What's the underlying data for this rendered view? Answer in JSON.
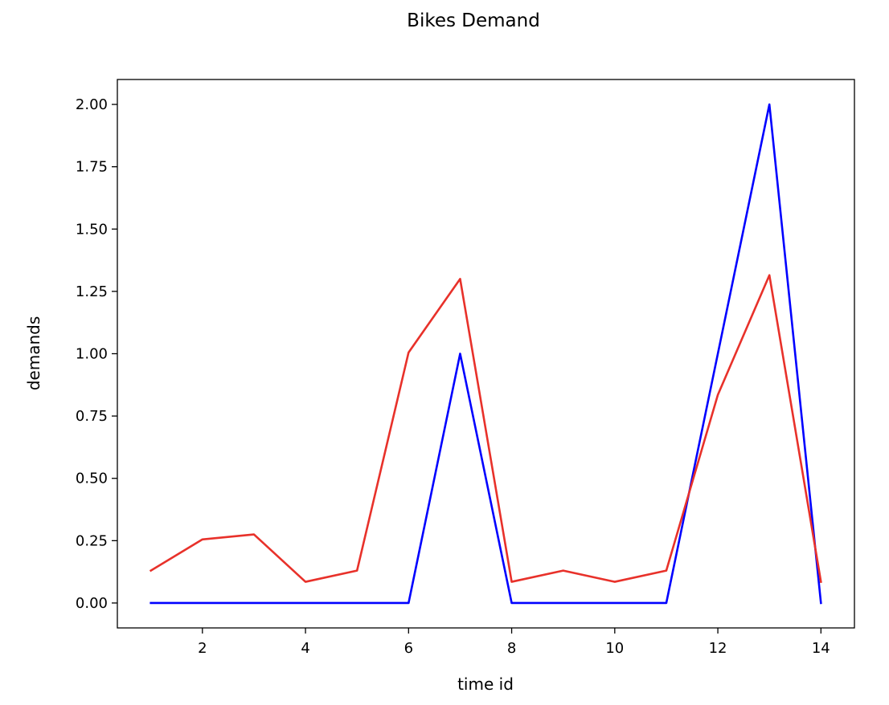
{
  "chart_data": {
    "type": "line",
    "title": "Bikes Demand",
    "xlabel": "time id",
    "ylabel": "demands",
    "xlim": [
      0.35,
      14.65
    ],
    "ylim": [
      -0.1,
      2.1
    ],
    "xticks": [
      2,
      4,
      6,
      8,
      10,
      12,
      14
    ],
    "yticks": [
      0.0,
      0.25,
      0.5,
      0.75,
      1.0,
      1.25,
      1.5,
      1.75,
      2.0
    ],
    "ytick_labels": [
      "0.00",
      "0.25",
      "0.50",
      "0.75",
      "1.00",
      "1.25",
      "1.50",
      "1.75",
      "2.00"
    ],
    "grid": false,
    "legend": false,
    "x": [
      1,
      2,
      3,
      4,
      5,
      6,
      7,
      8,
      9,
      10,
      11,
      12,
      13,
      14
    ],
    "series": [
      {
        "color": "#0000ff",
        "values": [
          0,
          0,
          0,
          0,
          0,
          0,
          1.0,
          0,
          0,
          0,
          0,
          1.0,
          2.0,
          0
        ]
      },
      {
        "color": "#e8312a",
        "values": [
          0.13,
          0.255,
          0.275,
          0.085,
          0.13,
          1.005,
          1.3,
          0.085,
          0.13,
          0.085,
          0.13,
          0.835,
          1.315,
          0.085
        ]
      }
    ]
  }
}
